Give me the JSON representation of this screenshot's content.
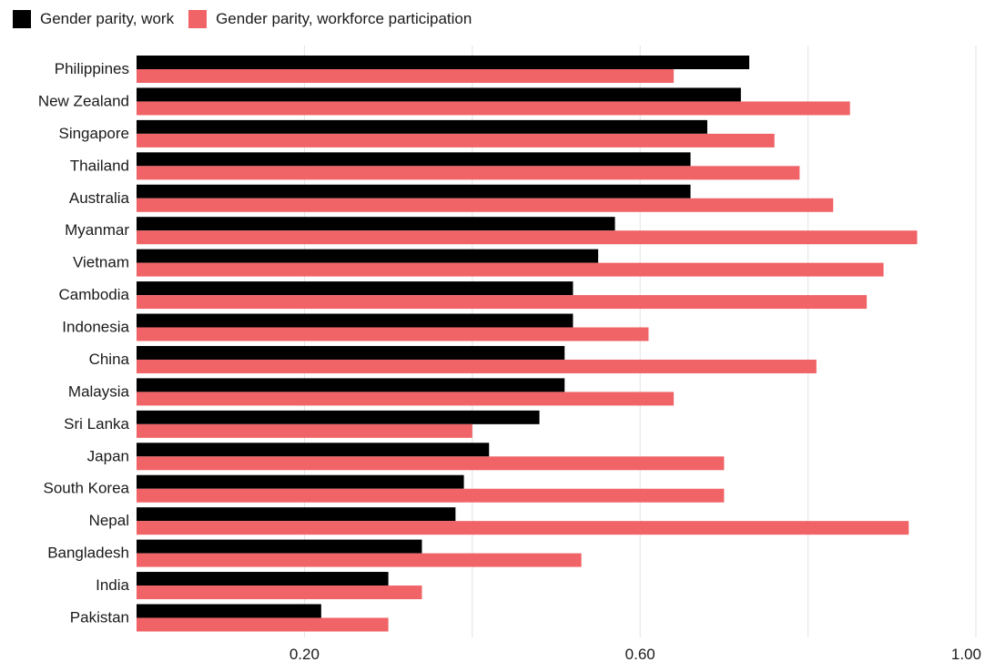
{
  "legend": {
    "items": [
      {
        "label": "Gender parity, work",
        "color": "#000000"
      },
      {
        "label": "Gender parity, workforce participation",
        "color": "#f06366"
      }
    ]
  },
  "chart_data": {
    "type": "bar",
    "orientation": "horizontal",
    "categories": [
      "Philippines",
      "New Zealand",
      "Singapore",
      "Thailand",
      "Australia",
      "Myanmar",
      "Vietnam",
      "Cambodia",
      "Indonesia",
      "China",
      "Malaysia",
      "Sri Lanka",
      "Japan",
      "South Korea",
      "Nepal",
      "Bangladesh",
      "India",
      "Pakistan"
    ],
    "series": [
      {
        "name": "Gender parity, work",
        "color": "#000000",
        "values": [
          0.73,
          0.72,
          0.68,
          0.66,
          0.66,
          0.57,
          0.55,
          0.52,
          0.52,
          0.51,
          0.51,
          0.48,
          0.42,
          0.39,
          0.38,
          0.34,
          0.3,
          0.22
        ]
      },
      {
        "name": "Gender parity, workforce participation",
        "color": "#f06366",
        "values": [
          0.64,
          0.85,
          0.76,
          0.79,
          0.83,
          0.93,
          0.89,
          0.87,
          0.61,
          0.81,
          0.64,
          0.4,
          0.7,
          0.7,
          0.92,
          0.53,
          0.34,
          0.3
        ]
      }
    ],
    "xlim": [
      0,
      1.0
    ],
    "xticks": [
      {
        "value": 0.2,
        "label": "0.20"
      },
      {
        "value": 0.6,
        "label": "0.60"
      },
      {
        "value": 1.0,
        "label": "1.00"
      }
    ],
    "gridlines": [
      0.2,
      0.4,
      0.6,
      0.8,
      1.0
    ],
    "grid": true,
    "legend_position": "top-left",
    "title": "",
    "xlabel": "",
    "ylabel": ""
  }
}
